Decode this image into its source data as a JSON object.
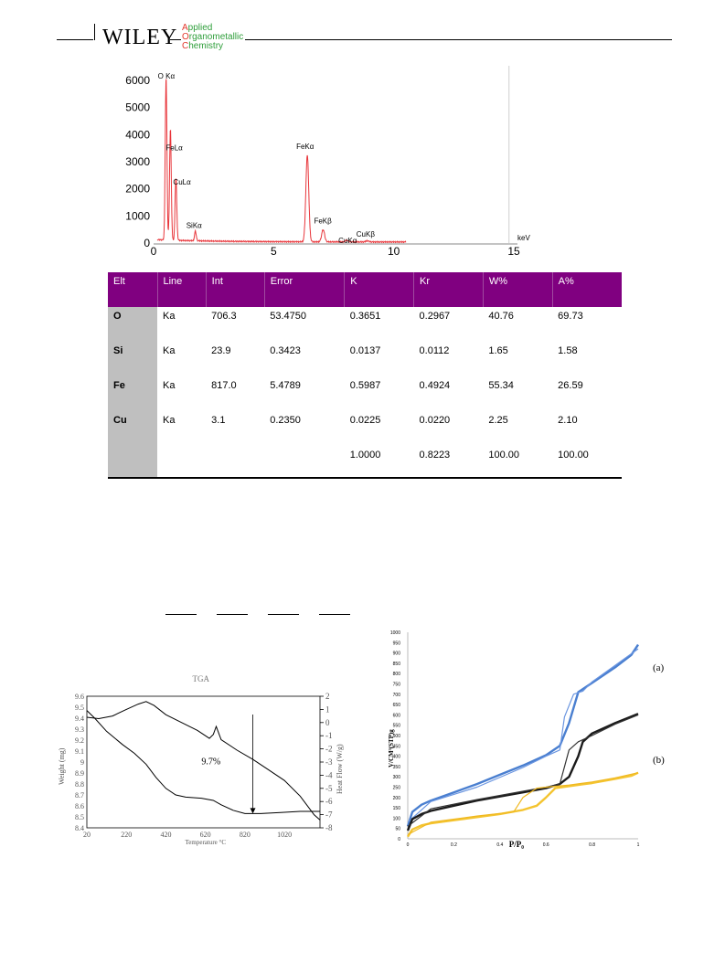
{
  "header": {
    "brand": "WILEY",
    "journal_lines": [
      "Applied",
      "Organometallic",
      "Chemistry"
    ]
  },
  "colors": {
    "table_header": "#800080",
    "eds_spectrum": "#e8353a",
    "elt_column": "#bfbfbf"
  },
  "eds_table": {
    "columns": [
      "Elt",
      "Line",
      "Int",
      "Error",
      "K",
      "Kr",
      "W%",
      "A%"
    ],
    "rows": [
      [
        "O",
        "Ka",
        "706.3",
        "53.4750",
        "0.3651",
        "0.2967",
        "40.76",
        "69.73"
      ],
      [
        "Si",
        "Ka",
        "23.9",
        "0.3423",
        "0.0137",
        "0.0112",
        "1.65",
        "1.58"
      ],
      [
        "Fe",
        "Ka",
        "817.0",
        "5.4789",
        "0.5987",
        "0.4924",
        "55.34",
        "26.59"
      ],
      [
        "Cu",
        "Ka",
        "3.1",
        "0.2350",
        "0.0225",
        "0.0220",
        "2.25",
        "2.10"
      ],
      [
        "",
        "",
        "",
        "",
        "1.0000",
        "0.8223",
        "100.00",
        "100.00"
      ]
    ]
  },
  "chart_data": [
    {
      "type": "line",
      "xlabel": "keV",
      "xlim": [
        0,
        15
      ],
      "ylim": [
        0,
        6000
      ],
      "x_ticks": [
        0,
        5,
        10,
        15
      ],
      "y_ticks": [
        0,
        1000,
        2000,
        3000,
        4000,
        5000,
        6000
      ],
      "peaks": [
        {
          "label": "O Kα",
          "x": 0.52,
          "y": 6000
        },
        {
          "label": "FeLα",
          "x": 0.7,
          "y": 4100
        },
        {
          "label": "CuLα",
          "x": 0.93,
          "y": 2300
        },
        {
          "label": "SiKα",
          "x": 1.74,
          "y": 350
        },
        {
          "label": "FeKα",
          "x": 6.4,
          "y": 3200
        },
        {
          "label": "FeKβ",
          "x": 7.06,
          "y": 450
        },
        {
          "label": "CuKα",
          "x": 8.04,
          "y": 60
        },
        {
          "label": "CuKβ",
          "x": 8.9,
          "y": 40
        }
      ]
    },
    {
      "type": "line",
      "title": "TGA",
      "xlabel": "Temperature °C",
      "ylabel": "Weight (mg)",
      "y2label": "Heat Flow (W/g)",
      "xlim": [
        20,
        1200
      ],
      "ylim": [
        8.4,
        9.6
      ],
      "y2lim": [
        -8,
        2
      ],
      "x_ticks": [
        20,
        220,
        420,
        620,
        820,
        1020
      ],
      "y_ticks": [
        8.4,
        8.5,
        8.6,
        8.7,
        8.8,
        8.9,
        9,
        9.1,
        9.2,
        9.3,
        9.4,
        9.5,
        9.6
      ],
      "y_tick_labels": [
        "8.4",
        "8.5",
        "8.6",
        "8.7",
        "8.8",
        "8.9",
        "9",
        "9.1",
        "9.2",
        "9.3",
        "9.4",
        "9.5",
        "9.6"
      ],
      "y2_ticks": [
        -8,
        -7,
        -6,
        -5,
        -4,
        -3,
        -2,
        -1,
        0,
        1,
        2
      ],
      "annotation": "9.7%",
      "series": [
        {
          "axis": "left",
          "x": [
            20,
            60,
            120,
            200,
            260,
            320,
            370,
            420,
            470,
            520,
            600,
            660,
            700,
            760,
            820,
            900,
            1000,
            1100,
            1200
          ],
          "y": [
            9.47,
            9.4,
            9.28,
            9.16,
            9.08,
            8.98,
            8.86,
            8.76,
            8.7,
            8.68,
            8.67,
            8.65,
            8.61,
            8.56,
            8.53,
            8.53,
            8.54,
            8.55,
            8.55
          ]
        },
        {
          "axis": "right",
          "x": [
            20,
            80,
            150,
            220,
            280,
            320,
            360,
            420,
            500,
            580,
            640,
            660,
            675,
            700,
            780,
            860,
            940,
            1020,
            1100,
            1170,
            1200
          ],
          "y": [
            0.4,
            0.3,
            0.5,
            1.0,
            1.4,
            1.6,
            1.3,
            0.6,
            0.0,
            -0.6,
            -1.2,
            -0.9,
            -0.3,
            -1.3,
            -2.1,
            -2.8,
            -3.6,
            -4.4,
            -5.6,
            -7.0,
            -7.4
          ]
        }
      ]
    },
    {
      "type": "line",
      "xlabel": "P/P₀",
      "ylabel": "V/CM³(STP)g",
      "xlim": [
        0,
        1
      ],
      "ylim": [
        0,
        1000
      ],
      "x_ticks": [
        0,
        0.2,
        0.4,
        0.6,
        0.8,
        1
      ],
      "x_tick_labels": [
        "0",
        "0.2",
        "0.4",
        "0.6",
        "0.8",
        "1"
      ],
      "y_ticks": [
        0,
        50,
        100,
        150,
        200,
        250,
        300,
        350,
        400,
        450,
        500,
        550,
        600,
        650,
        700,
        750,
        800,
        850,
        900,
        950,
        1000
      ],
      "annotations": [
        "(a)",
        "(b)"
      ],
      "series": [
        {
          "color": "#4a7fd0",
          "x": [
            0,
            0.02,
            0.06,
            0.1,
            0.2,
            0.3,
            0.4,
            0.5,
            0.6,
            0.66,
            0.7,
            0.74,
            0.8,
            0.9,
            0.97,
            1.0
          ],
          "y": [
            60,
            130,
            165,
            185,
            225,
            265,
            310,
            355,
            405,
            450,
            560,
            710,
            755,
            830,
            890,
            940
          ]
        },
        {
          "color": "#6a95e0",
          "x": [
            0,
            0.1,
            0.3,
            0.5,
            0.6,
            0.66,
            0.68,
            0.72,
            0.76,
            0.8,
            0.9,
            1.0
          ],
          "y": [
            80,
            180,
            250,
            345,
            400,
            430,
            590,
            700,
            715,
            760,
            840,
            920
          ]
        },
        {
          "color": "#1a1a1a",
          "x": [
            0,
            0.02,
            0.06,
            0.1,
            0.2,
            0.3,
            0.4,
            0.5,
            0.6,
            0.66,
            0.7,
            0.74,
            0.76,
            0.8,
            0.9,
            1.0
          ],
          "y": [
            40,
            95,
            120,
            135,
            160,
            185,
            205,
            225,
            245,
            265,
            300,
            400,
            470,
            510,
            560,
            605
          ]
        },
        {
          "color": "#333333",
          "x": [
            0,
            0.1,
            0.3,
            0.5,
            0.6,
            0.66,
            0.7,
            0.74,
            0.8,
            0.9,
            1.0
          ],
          "y": [
            60,
            145,
            190,
            230,
            250,
            265,
            430,
            470,
            500,
            555,
            600
          ]
        },
        {
          "color": "#f4c430",
          "x": [
            0,
            0.02,
            0.06,
            0.1,
            0.2,
            0.3,
            0.4,
            0.5,
            0.56,
            0.6,
            0.64,
            0.7,
            0.8,
            0.9,
            0.97,
            1.0
          ],
          "y": [
            10,
            45,
            65,
            75,
            90,
            105,
            120,
            140,
            160,
            200,
            245,
            255,
            270,
            290,
            305,
            320
          ]
        },
        {
          "color": "#f0b820",
          "x": [
            0,
            0.1,
            0.3,
            0.46,
            0.5,
            0.56,
            0.6,
            0.7,
            0.8,
            0.9,
            1.0
          ],
          "y": [
            20,
            80,
            110,
            130,
            200,
            245,
            250,
            260,
            275,
            295,
            320
          ]
        }
      ]
    }
  ]
}
